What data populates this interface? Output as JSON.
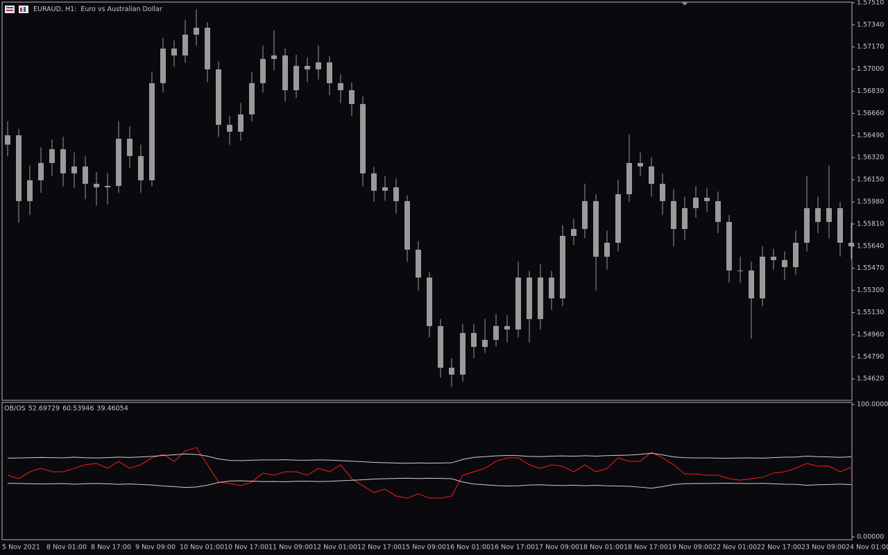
{
  "chart_data": [
    {
      "type": "candlestick",
      "title": "EURAUD, H1:  Euro vs Australian Dollar",
      "color": "#9a9a9a",
      "categories": [
        "5 Nov 2021",
        null,
        null,
        null,
        "8 Nov 01:00",
        null,
        null,
        null,
        "8 Nov 17:00",
        null,
        null,
        null,
        "9 Nov 09:00",
        null,
        null,
        null,
        "10 Nov 01:00",
        null,
        null,
        null,
        "10 Nov 17:00",
        null,
        null,
        null,
        "11 Nov 09:00",
        null,
        null,
        null,
        "12 Nov 01:00",
        null,
        null,
        null,
        "12 Nov 17:00",
        null,
        null,
        null,
        "15 Nov 09:00",
        null,
        null,
        null,
        "16 Nov 01:00",
        null,
        null,
        null,
        "16 Nov 17:00",
        null,
        null,
        null,
        "17 Nov 09:00",
        null,
        null,
        null,
        "18 Nov 01:00",
        null,
        null,
        null,
        "18 Nov 17:00",
        null,
        null,
        null,
        "19 Nov 09:00",
        null,
        null,
        null,
        "22 Nov 01:00",
        null,
        null,
        null,
        "22 Nov 17:00",
        null,
        null,
        null,
        "23 Nov 09:00",
        null,
        null,
        null,
        "24 Nov 01:00"
      ],
      "open": [
        1.5642,
        1.56492,
        1.55986,
        1.56146,
        1.56279,
        1.56385,
        1.56199,
        1.56252,
        1.56119,
        1.56092,
        1.56103,
        1.56465,
        1.56332,
        1.56146,
        1.56892,
        1.57158,
        1.57105,
        1.57265,
        1.57318,
        1.56998,
        1.56572,
        1.56519,
        1.56652,
        1.56892,
        1.57078,
        1.57105,
        1.56838,
        1.57025,
        1.56998,
        1.57052,
        1.56892,
        1.56838,
        1.56732,
        1.56199,
        1.56066,
        1.56092,
        1.55986,
        1.55613,
        1.55399,
        1.55026,
        1.54706,
        1.54653,
        1.54973,
        1.54866,
        1.5492,
        1.55026,
        1.55,
        1.55399,
        1.5508,
        1.55399,
        1.55239,
        1.55719,
        1.55772,
        1.55986,
        1.55559,
        1.55666,
        1.56039,
        1.56279,
        1.56252,
        1.56119,
        1.55986,
        1.55772,
        1.55932,
        1.56012,
        1.55986,
        1.55826,
        1.55453,
        1.55453,
        1.55239,
        1.55559,
        1.55533,
        1.55479,
        1.55666,
        1.55932,
        1.55826,
        1.55932,
        1.55666
      ],
      "high": [
        1.566,
        1.5654,
        1.5626,
        1.564,
        1.5646,
        1.5648,
        1.5636,
        1.5633,
        1.5621,
        1.562,
        1.566,
        1.5656,
        1.5642,
        1.5698,
        1.5724,
        1.5722,
        1.5738,
        1.5746,
        1.5736,
        1.5706,
        1.5664,
        1.5674,
        1.5698,
        1.5718,
        1.573,
        1.5716,
        1.5711,
        1.5709,
        1.5718,
        1.571,
        1.5696,
        1.569,
        1.5679,
        1.5625,
        1.5618,
        1.5616,
        1.5603,
        1.5568,
        1.5544,
        1.5508,
        1.5478,
        1.5504,
        1.5504,
        1.5508,
        1.5512,
        1.5511,
        1.5552,
        1.5545,
        1.555,
        1.5545,
        1.558,
        1.5585,
        1.5612,
        1.5604,
        1.5576,
        1.5615,
        1.565,
        1.5636,
        1.5632,
        1.562,
        1.5608,
        1.5602,
        1.561,
        1.5609,
        1.5606,
        1.5588,
        1.5556,
        1.5552,
        1.5564,
        1.5562,
        1.556,
        1.5576,
        1.5618,
        1.5602,
        1.5626,
        1.5598,
        1.5582
      ],
      "low": [
        1.5633,
        1.5582,
        1.5588,
        1.5605,
        1.5618,
        1.561,
        1.5609,
        1.56,
        1.5595,
        1.5596,
        1.5605,
        1.5624,
        1.5605,
        1.561,
        1.5682,
        1.5702,
        1.5705,
        1.5718,
        1.569,
        1.5648,
        1.5642,
        1.5645,
        1.566,
        1.5682,
        1.5699,
        1.5675,
        1.5678,
        1.569,
        1.5692,
        1.568,
        1.5674,
        1.5664,
        1.561,
        1.5598,
        1.5599,
        1.5589,
        1.5552,
        1.553,
        1.5494,
        1.5463,
        1.5456,
        1.546,
        1.5478,
        1.5482,
        1.5487,
        1.549,
        1.5494,
        1.549,
        1.55,
        1.5515,
        1.5518,
        1.5565,
        1.557,
        1.553,
        1.5546,
        1.556,
        1.5598,
        1.5618,
        1.5602,
        1.5588,
        1.5564,
        1.5569,
        1.5586,
        1.559,
        1.5574,
        1.5536,
        1.5536,
        1.5493,
        1.5518,
        1.5546,
        1.5538,
        1.5542,
        1.556,
        1.5574,
        1.557,
        1.5556,
        1.5554
      ],
      "close": [
        1.56492,
        1.55986,
        1.56146,
        1.56279,
        1.56385,
        1.56199,
        1.56252,
        1.56119,
        1.56092,
        1.56103,
        1.56465,
        1.56332,
        1.56146,
        1.56892,
        1.57158,
        1.57105,
        1.57265,
        1.57318,
        1.56998,
        1.56572,
        1.56519,
        1.56652,
        1.56892,
        1.57078,
        1.57105,
        1.56838,
        1.57025,
        1.56998,
        1.57052,
        1.56892,
        1.56838,
        1.56732,
        1.56199,
        1.56066,
        1.56092,
        1.55986,
        1.55613,
        1.55399,
        1.55026,
        1.54706,
        1.54653,
        1.54973,
        1.54866,
        1.5492,
        1.55026,
        1.55,
        1.55399,
        1.5508,
        1.55399,
        1.55239,
        1.55719,
        1.55772,
        1.55986,
        1.55559,
        1.55666,
        1.56039,
        1.56279,
        1.56252,
        1.56119,
        1.55986,
        1.55772,
        1.55932,
        1.56012,
        1.55986,
        1.55826,
        1.55453,
        1.55453,
        1.55239,
        1.55559,
        1.55533,
        1.55479,
        1.55666,
        1.55932,
        1.55826,
        1.55932,
        1.55666,
        1.55639
      ],
      "ylim": [
        1.54456,
        1.57515
      ],
      "yticks": [
        {
          "value": 1.5751,
          "label": "1.57510"
        },
        {
          "value": 1.5734,
          "label": "1.57340"
        },
        {
          "value": 1.5717,
          "label": "1.57170"
        },
        {
          "value": 1.57,
          "label": "1.57000"
        },
        {
          "value": 1.5683,
          "label": "1.56830"
        },
        {
          "value": 1.5666,
          "label": "1.56660"
        },
        {
          "value": 1.5649,
          "label": "1.56490"
        },
        {
          "value": 1.5632,
          "label": "1.56320"
        },
        {
          "value": 1.5615,
          "label": "1.56150"
        },
        {
          "value": 1.5598,
          "label": "1.55980"
        },
        {
          "value": 1.5581,
          "label": "1.55810"
        },
        {
          "value": 1.5564,
          "label": "1.55640"
        },
        {
          "value": 1.5547,
          "label": "1.55470"
        },
        {
          "value": 1.553,
          "label": "1.55300"
        },
        {
          "value": 1.5513,
          "label": "1.55130"
        },
        {
          "value": 1.5496,
          "label": "1.54960"
        },
        {
          "value": 1.5479,
          "label": "1.54790"
        },
        {
          "value": 1.5462,
          "label": "1.54620"
        }
      ]
    },
    {
      "type": "line",
      "title": "OB/OS",
      "series": [
        {
          "color": "#ff1a1a",
          "values": [
            46.6,
            44.0,
            49.2,
            51.8,
            49.2,
            49.2,
            51.8,
            54.5,
            55.5,
            51.8,
            57.1,
            51.8,
            54.5,
            59.7,
            62.3,
            57.1,
            64.9,
            67.5,
            54.5,
            41.4,
            40.3,
            38.7,
            41.4,
            48.2,
            46.6,
            49.2,
            49.2,
            46.6,
            51.8,
            49.2,
            54.5,
            44.0,
            38.7,
            33.5,
            36.1,
            30.9,
            29.3,
            32.5,
            29.3,
            29.3,
            30.9,
            46.6,
            49.2,
            51.8,
            57.1,
            59.7,
            59.7,
            54.5,
            51.8,
            54.5,
            53.4,
            49.2,
            54.5,
            49.2,
            51.8,
            59.7,
            57.1,
            57.1,
            63.9,
            59.7,
            54.5,
            47.6,
            47.6,
            46.6,
            46.6,
            44.0,
            42.9,
            44.0,
            45.0,
            48.2,
            49.2,
            51.8,
            55.5,
            53.4,
            53.4,
            49.2,
            52.69729
          ]
        },
        {
          "color": "#d0d0d0",
          "values": [
            59.5,
            59.6,
            59.8,
            60.0,
            59.9,
            59.7,
            60.2,
            59.8,
            59.6,
            59.9,
            60.3,
            60.0,
            60.4,
            60.8,
            61.5,
            62.0,
            62.6,
            62.3,
            61.0,
            58.9,
            57.8,
            57.6,
            57.9,
            58.2,
            58.1,
            58.3,
            58.0,
            57.9,
            58.2,
            58.0,
            57.6,
            57.2,
            56.8,
            56.3,
            56.0,
            55.8,
            55.6,
            55.9,
            55.7,
            55.8,
            56.0,
            58.5,
            60.1,
            60.6,
            61.2,
            61.5,
            61.4,
            60.8,
            60.6,
            61.0,
            61.2,
            60.9,
            61.3,
            61.0,
            61.4,
            61.6,
            61.8,
            62.4,
            63.2,
            62.0,
            60.4,
            59.8,
            59.6,
            59.7,
            59.5,
            59.4,
            59.6,
            59.7,
            59.5,
            59.9,
            60.2,
            60.3,
            61.0,
            60.6,
            60.4,
            60.1,
            60.53946
          ]
        },
        {
          "color": "#d0d0d0",
          "values": [
            40.5,
            40.4,
            40.2,
            40.0,
            40.1,
            40.3,
            39.8,
            40.2,
            40.4,
            40.1,
            39.7,
            40.0,
            39.6,
            39.2,
            38.5,
            38.0,
            37.4,
            37.7,
            39.0,
            41.1,
            42.2,
            42.4,
            42.1,
            41.8,
            41.9,
            41.7,
            42.0,
            42.1,
            41.8,
            42.0,
            42.4,
            42.8,
            43.2,
            43.7,
            44.0,
            44.2,
            44.4,
            44.1,
            44.3,
            44.2,
            44.0,
            41.5,
            39.9,
            39.4,
            38.8,
            38.5,
            38.6,
            39.2,
            39.4,
            39.0,
            38.8,
            39.1,
            38.7,
            39.0,
            38.6,
            38.4,
            38.2,
            37.6,
            36.8,
            38.0,
            39.6,
            40.2,
            40.4,
            40.3,
            40.5,
            40.6,
            40.4,
            40.3,
            40.5,
            40.1,
            39.8,
            39.7,
            39.0,
            39.4,
            39.6,
            39.9,
            39.46054
          ]
        }
      ],
      "ylim": [
        -2.09,
        101.57
      ],
      "yticks": [
        {
          "value": 100,
          "label": "100.00000"
        },
        {
          "value": 0,
          "label": "0.00000"
        }
      ]
    }
  ]
}
